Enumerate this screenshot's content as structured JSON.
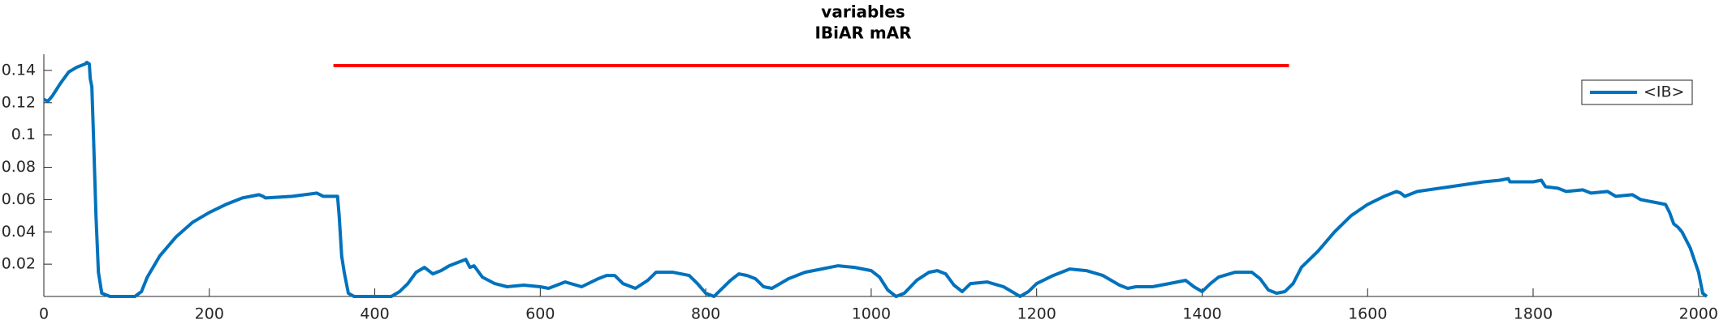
{
  "chart_data": {
    "type": "line",
    "title": "variables",
    "subtitle": "IBiAR mAR",
    "x": [
      0,
      5,
      10,
      20,
      30,
      40,
      50,
      52,
      55,
      56,
      58,
      60,
      63,
      66,
      70,
      80,
      110,
      118,
      125,
      140,
      160,
      180,
      200,
      220,
      240,
      260,
      265,
      268,
      300,
      330,
      338,
      355,
      357,
      360,
      363,
      368,
      375,
      420,
      430,
      440,
      450,
      460,
      470,
      480,
      490,
      500,
      510,
      515,
      520,
      530,
      545,
      560,
      580,
      600,
      610,
      630,
      650,
      670,
      680,
      690,
      700,
      715,
      730,
      740,
      760,
      780,
      790,
      800,
      810,
      820,
      830,
      840,
      850,
      860,
      870,
      880,
      890,
      900,
      920,
      940,
      960,
      980,
      1000,
      1010,
      1020,
      1030,
      1040,
      1055,
      1070,
      1080,
      1090,
      1100,
      1110,
      1120,
      1140,
      1160,
      1170,
      1180,
      1190,
      1200,
      1220,
      1240,
      1260,
      1280,
      1300,
      1310,
      1320,
      1340,
      1360,
      1380,
      1390,
      1400,
      1410,
      1420,
      1440,
      1460,
      1470,
      1480,
      1490,
      1500,
      1510,
      1520,
      1540,
      1560,
      1580,
      1600,
      1620,
      1630,
      1635,
      1640,
      1645,
      1660,
      1700,
      1740,
      1760,
      1770,
      1772,
      1800,
      1810,
      1815,
      1830,
      1840,
      1860,
      1870,
      1890,
      1900,
      1920,
      1930,
      1950,
      1960,
      1965,
      1970,
      1975,
      1980,
      1990,
      2000,
      2005,
      2010
    ],
    "series": [
      {
        "name": "<IB>",
        "color": "#0072bd",
        "values": [
          0.122,
          0.121,
          0.124,
          0.132,
          0.139,
          0.142,
          0.144,
          0.145,
          0.144,
          0.135,
          0.13,
          0.1,
          0.05,
          0.015,
          0.002,
          0.0,
          0.0,
          0.003,
          0.012,
          0.025,
          0.037,
          0.046,
          0.052,
          0.057,
          0.061,
          0.063,
          0.062,
          0.061,
          0.062,
          0.064,
          0.062,
          0.062,
          0.05,
          0.025,
          0.015,
          0.002,
          0.0,
          0.0,
          0.003,
          0.008,
          0.015,
          0.018,
          0.014,
          0.016,
          0.019,
          0.021,
          0.023,
          0.018,
          0.019,
          0.012,
          0.008,
          0.006,
          0.007,
          0.006,
          0.005,
          0.009,
          0.006,
          0.011,
          0.013,
          0.013,
          0.008,
          0.005,
          0.01,
          0.015,
          0.015,
          0.013,
          0.008,
          0.002,
          0.0,
          0.005,
          0.01,
          0.014,
          0.013,
          0.011,
          0.006,
          0.005,
          0.008,
          0.011,
          0.015,
          0.017,
          0.019,
          0.018,
          0.016,
          0.012,
          0.004,
          0.0,
          0.002,
          0.01,
          0.015,
          0.016,
          0.014,
          0.007,
          0.003,
          0.008,
          0.009,
          0.006,
          0.003,
          0.0,
          0.003,
          0.008,
          0.013,
          0.017,
          0.016,
          0.013,
          0.007,
          0.005,
          0.006,
          0.006,
          0.008,
          0.01,
          0.006,
          0.003,
          0.008,
          0.012,
          0.015,
          0.015,
          0.011,
          0.004,
          0.002,
          0.003,
          0.008,
          0.018,
          0.028,
          0.04,
          0.05,
          0.057,
          0.062,
          0.064,
          0.065,
          0.064,
          0.062,
          0.065,
          0.068,
          0.071,
          0.072,
          0.073,
          0.071,
          0.071,
          0.072,
          0.068,
          0.067,
          0.065,
          0.066,
          0.064,
          0.065,
          0.062,
          0.063,
          0.06,
          0.058,
          0.057,
          0.052,
          0.045,
          0.043,
          0.04,
          0.03,
          0.015,
          0.002,
          0.0
        ]
      }
    ],
    "reference_line": {
      "x": [
        350,
        1505
      ],
      "value": 0.143,
      "color": "#ff0000"
    },
    "xlim": [
      0,
      2010
    ],
    "ylim": [
      0,
      0.15
    ],
    "xticks": [
      0,
      200,
      400,
      600,
      800,
      1000,
      1200,
      1400,
      1600,
      1800,
      2000
    ],
    "yticks": [
      0.02,
      0.04,
      0.06,
      0.08,
      0.1,
      0.12,
      0.14
    ],
    "grid": false,
    "legend": "northeast"
  }
}
